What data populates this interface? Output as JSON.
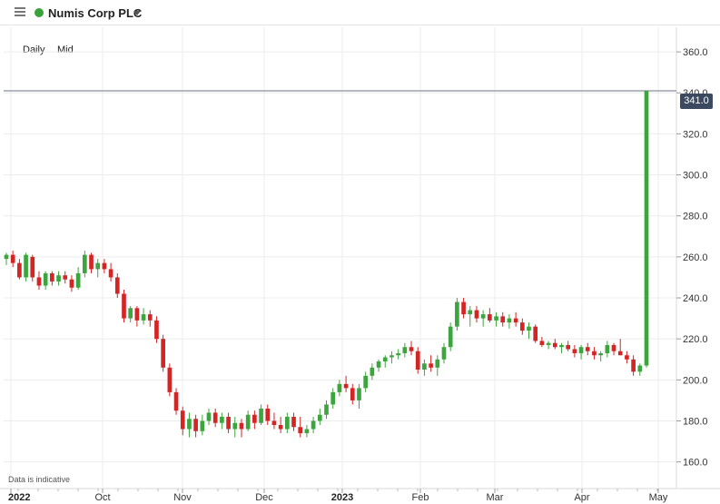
{
  "header": {
    "instrument": "Numis Corp PLC",
    "status_color": "#3aa23a"
  },
  "controls": {
    "interval": "Daily",
    "price_type": "Mid"
  },
  "disclaimer": "Data is indicative",
  "last_price_label": "341.0",
  "chart_data": {
    "type": "candlestick",
    "y_ticks": [
      "160.0",
      "180.0",
      "200.0",
      "220.0",
      "240.0",
      "260.0",
      "280.0",
      "300.0",
      "320.0",
      "340.0",
      "360.0"
    ],
    "x_ticks": [
      {
        "label": "2022",
        "bold": true
      },
      {
        "label": "Oct"
      },
      {
        "label": "Nov"
      },
      {
        "label": "Dec"
      },
      {
        "label": "2023",
        "bold": true
      },
      {
        "label": "Feb"
      },
      {
        "label": "Mar"
      },
      {
        "label": "Apr"
      },
      {
        "label": "May"
      }
    ],
    "ylim": [
      147,
      372
    ],
    "colors": {
      "up": "#3da53d",
      "down": "#d42525"
    },
    "last_price": 341,
    "candles": [
      [
        259,
        262,
        256,
        261
      ],
      [
        261,
        263,
        255,
        257
      ],
      [
        257,
        259,
        249,
        250
      ],
      [
        250,
        262,
        248,
        261
      ],
      [
        260,
        261,
        248,
        250
      ],
      [
        250,
        253,
        244,
        246
      ],
      [
        246,
        253,
        244,
        252
      ],
      [
        252,
        253,
        246,
        248
      ],
      [
        248,
        253,
        246,
        251
      ],
      [
        251,
        253,
        247,
        249
      ],
      [
        249,
        251,
        243,
        245
      ],
      [
        245,
        255,
        244,
        252
      ],
      [
        252,
        263,
        250,
        261
      ],
      [
        261,
        262,
        252,
        254
      ],
      [
        254,
        259,
        250,
        257
      ],
      [
        257,
        259,
        252,
        254
      ],
      [
        254,
        257,
        248,
        250
      ],
      [
        250,
        252,
        240,
        242
      ],
      [
        242,
        244,
        228,
        230
      ],
      [
        230,
        236,
        228,
        235
      ],
      [
        235,
        236,
        226,
        229
      ],
      [
        229,
        235,
        227,
        232
      ],
      [
        232,
        234,
        226,
        229
      ],
      [
        229,
        231,
        218,
        220
      ],
      [
        220,
        222,
        204,
        206
      ],
      [
        206,
        208,
        192,
        194
      ],
      [
        194,
        196,
        183,
        185
      ],
      [
        185,
        187,
        173,
        176
      ],
      [
        176,
        184,
        172,
        181
      ],
      [
        181,
        183,
        172,
        175
      ],
      [
        175,
        183,
        173,
        180
      ],
      [
        180,
        186,
        178,
        184
      ],
      [
        184,
        186,
        177,
        179
      ],
      [
        179,
        184,
        176,
        182
      ],
      [
        182,
        184,
        174,
        176
      ],
      [
        176,
        182,
        172,
        179
      ],
      [
        179,
        181,
        172,
        176
      ],
      [
        176,
        185,
        175,
        183
      ],
      [
        183,
        185,
        176,
        179
      ],
      [
        179,
        188,
        178,
        186
      ],
      [
        186,
        188,
        178,
        180
      ],
      [
        180,
        184,
        176,
        178
      ],
      [
        178,
        182,
        174,
        176
      ],
      [
        176,
        184,
        174,
        182
      ],
      [
        182,
        184,
        175,
        177
      ],
      [
        177,
        182,
        172,
        174
      ],
      [
        174,
        178,
        172,
        176
      ],
      [
        176,
        182,
        174,
        180
      ],
      [
        180,
        186,
        178,
        183
      ],
      [
        183,
        190,
        181,
        188
      ],
      [
        188,
        196,
        186,
        194
      ],
      [
        194,
        200,
        192,
        198
      ],
      [
        198,
        202,
        194,
        196
      ],
      [
        196,
        198,
        188,
        190
      ],
      [
        190,
        198,
        186,
        196
      ],
      [
        196,
        204,
        194,
        202
      ],
      [
        202,
        208,
        200,
        206
      ],
      [
        206,
        210,
        204,
        209
      ],
      [
        209,
        212,
        206,
        211
      ],
      [
        211,
        214,
        208,
        212
      ],
      [
        212,
        215,
        210,
        213
      ],
      [
        213,
        218,
        211,
        216
      ],
      [
        216,
        219,
        212,
        214
      ],
      [
        214,
        216,
        203,
        205
      ],
      [
        205,
        210,
        202,
        208
      ],
      [
        208,
        212,
        204,
        206
      ],
      [
        206,
        212,
        202,
        210
      ],
      [
        210,
        218,
        208,
        216
      ],
      [
        216,
        228,
        214,
        226
      ],
      [
        226,
        240,
        224,
        238
      ],
      [
        238,
        240,
        230,
        232
      ],
      [
        232,
        236,
        226,
        234
      ],
      [
        234,
        236,
        228,
        230
      ],
      [
        230,
        234,
        226,
        232
      ],
      [
        232,
        235,
        228,
        229
      ],
      [
        229,
        233,
        226,
        231
      ],
      [
        231,
        233,
        226,
        228
      ],
      [
        228,
        232,
        225,
        230
      ],
      [
        230,
        233,
        226,
        228
      ],
      [
        228,
        230,
        222,
        224
      ],
      [
        224,
        228,
        220,
        226
      ],
      [
        226,
        227,
        218,
        219
      ],
      [
        219,
        221,
        216,
        217
      ],
      [
        217,
        219,
        215,
        218
      ],
      [
        218,
        220,
        215,
        216
      ],
      [
        216,
        218,
        213,
        217
      ],
      [
        217,
        219,
        214,
        215
      ],
      [
        215,
        217,
        211,
        213
      ],
      [
        213,
        217,
        210,
        216
      ],
      [
        216,
        218,
        212,
        214
      ],
      [
        214,
        216,
        210,
        212
      ],
      [
        212,
        214,
        209,
        213
      ],
      [
        213,
        219,
        211,
        217
      ],
      [
        217,
        218,
        212,
        214
      ],
      [
        214,
        220,
        212,
        212
      ],
      [
        212,
        214,
        208,
        210
      ],
      [
        210,
        212,
        202,
        204
      ],
      [
        204,
        208,
        202,
        207
      ],
      [
        207,
        341,
        206,
        341
      ]
    ]
  }
}
